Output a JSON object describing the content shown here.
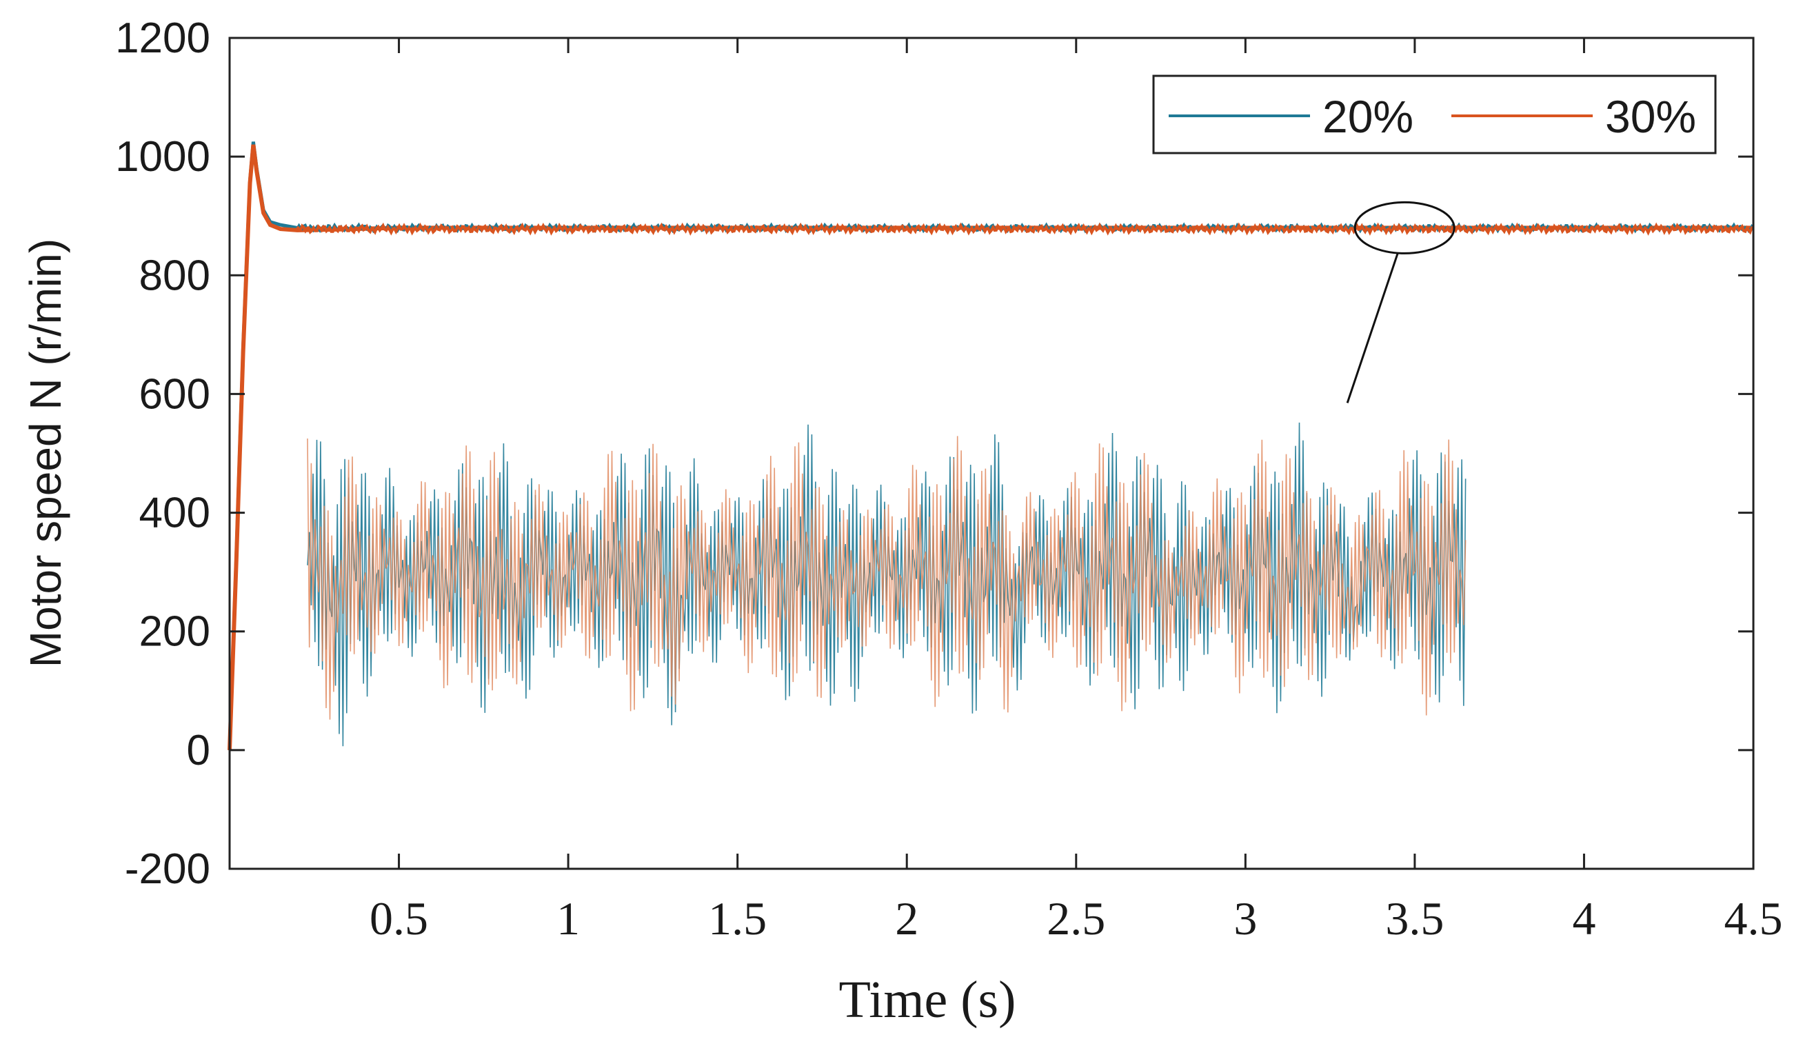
{
  "chart_data": {
    "type": "line",
    "title": "",
    "xlabel": "Time (s)",
    "ylabel": "Motor speed  N (r/min)",
    "xlim": [
      0,
      4.5
    ],
    "ylim": [
      -200,
      1200
    ],
    "x_ticks": [
      0.5,
      1,
      1.5,
      2,
      2.5,
      3,
      3.5,
      4,
      4.5
    ],
    "x_tick_labels": [
      "0.5",
      "1",
      "1.5",
      "2",
      "2.5",
      "3",
      "3.5",
      "4",
      "4.5"
    ],
    "y_ticks": [
      -200,
      0,
      200,
      400,
      600,
      800,
      1000,
      1200
    ],
    "y_tick_labels": [
      "-200",
      "0",
      "200",
      "400",
      "600",
      "800",
      "1000",
      "1200"
    ],
    "grid": false,
    "legend_position": "top-right",
    "colors": {
      "s20": "#1f7a96",
      "s30": "#d9541f"
    },
    "series": [
      {
        "name": "20%",
        "color": "#1f7a96",
        "x": [
          0,
          0.02,
          0.04,
          0.06,
          0.07,
          0.08,
          0.1,
          0.12,
          0.15,
          0.2,
          0.3,
          0.5,
          1,
          1.5,
          2,
          2.5,
          3,
          3.5,
          4,
          4.5
        ],
        "y": [
          0,
          330,
          680,
          960,
          1025,
          980,
          910,
          890,
          885,
          880,
          878,
          880,
          880,
          880,
          880,
          880,
          880,
          880,
          880,
          880
        ]
      },
      {
        "name": "30%",
        "color": "#d9541f",
        "x": [
          0,
          0.02,
          0.04,
          0.06,
          0.07,
          0.08,
          0.1,
          0.12,
          0.15,
          0.2,
          0.3,
          0.5,
          1,
          1.5,
          2,
          2.5,
          3,
          3.5,
          4,
          4.5
        ],
        "y": [
          0,
          320,
          670,
          955,
          1020,
          975,
          905,
          885,
          878,
          876,
          877,
          880,
          880,
          880,
          880,
          880,
          880,
          880,
          880,
          880
        ]
      }
    ],
    "annotation": {
      "type": "zoom-ellipse",
      "center_x": 3.47,
      "center_y": 880
    },
    "inset": {
      "description": "Zoomed view of steady-state ripple",
      "x_range": [
        0.23,
        3.65
      ],
      "y_center": 300,
      "y_amplitude": 250,
      "series": [
        "20%",
        "30%"
      ]
    }
  }
}
